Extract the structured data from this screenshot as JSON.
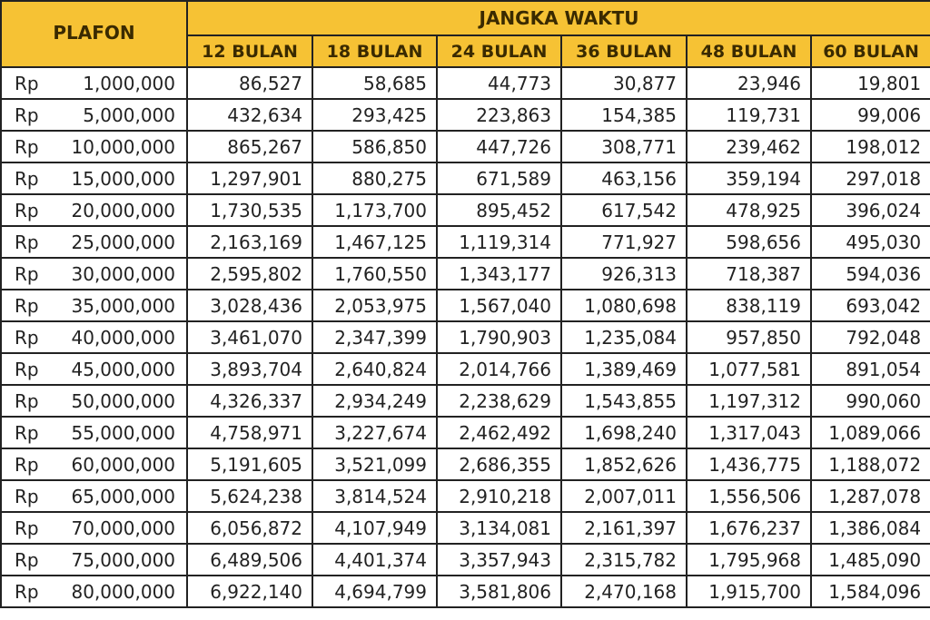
{
  "table": {
    "header": {
      "plafon": "PLAFON",
      "term": "JANGKA  WAKTU",
      "columns": [
        "12 BULAN",
        "18 BULAN",
        "24 BULAN",
        "36 BULAN",
        "48 BULAN",
        "60 BULAN"
      ]
    },
    "rows": [
      [
        "Rp",
        "1,000,000",
        "86,527",
        "58,685",
        "44,773",
        "30,877",
        "23,946",
        "19,801"
      ],
      [
        "Rp",
        "5,000,000",
        "432,634",
        "293,425",
        "223,863",
        "154,385",
        "119,731",
        "99,006"
      ],
      [
        "Rp",
        "10,000,000",
        "865,267",
        "586,850",
        "447,726",
        "308,771",
        "239,462",
        "198,012"
      ],
      [
        "Rp",
        "15,000,000",
        "1,297,901",
        "880,275",
        "671,589",
        "463,156",
        "359,194",
        "297,018"
      ],
      [
        "Rp",
        "20,000,000",
        "1,730,535",
        "1,173,700",
        "895,452",
        "617,542",
        "478,925",
        "396,024"
      ],
      [
        "Rp",
        "25,000,000",
        "2,163,169",
        "1,467,125",
        "1,119,314",
        "771,927",
        "598,656",
        "495,030"
      ],
      [
        "Rp",
        "30,000,000",
        "2,595,802",
        "1,760,550",
        "1,343,177",
        "926,313",
        "718,387",
        "594,036"
      ],
      [
        "Rp",
        "35,000,000",
        "3,028,436",
        "2,053,975",
        "1,567,040",
        "1,080,698",
        "838,119",
        "693,042"
      ],
      [
        "Rp",
        "40,000,000",
        "3,461,070",
        "2,347,399",
        "1,790,903",
        "1,235,084",
        "957,850",
        "792,048"
      ],
      [
        "Rp",
        "45,000,000",
        "3,893,704",
        "2,640,824",
        "2,014,766",
        "1,389,469",
        "1,077,581",
        "891,054"
      ],
      [
        "Rp",
        "50,000,000",
        "4,326,337",
        "2,934,249",
        "2,238,629",
        "1,543,855",
        "1,197,312",
        "990,060"
      ],
      [
        "Rp",
        "55,000,000",
        "4,758,971",
        "3,227,674",
        "2,462,492",
        "1,698,240",
        "1,317,043",
        "1,089,066"
      ],
      [
        "Rp",
        "60,000,000",
        "5,191,605",
        "3,521,099",
        "2,686,355",
        "1,852,626",
        "1,436,775",
        "1,188,072"
      ],
      [
        "Rp",
        "65,000,000",
        "5,624,238",
        "3,814,524",
        "2,910,218",
        "2,007,011",
        "1,556,506",
        "1,287,078"
      ],
      [
        "Rp",
        "70,000,000",
        "6,056,872",
        "4,107,949",
        "3,134,081",
        "2,161,397",
        "1,676,237",
        "1,386,084"
      ],
      [
        "Rp",
        "75,000,000",
        "6,489,506",
        "4,401,374",
        "3,357,943",
        "2,315,782",
        "1,795,968",
        "1,485,090"
      ],
      [
        "Rp",
        "80,000,000",
        "6,922,140",
        "4,694,799",
        "3,581,806",
        "2,470,168",
        "1,915,700",
        "1,584,096"
      ]
    ]
  }
}
